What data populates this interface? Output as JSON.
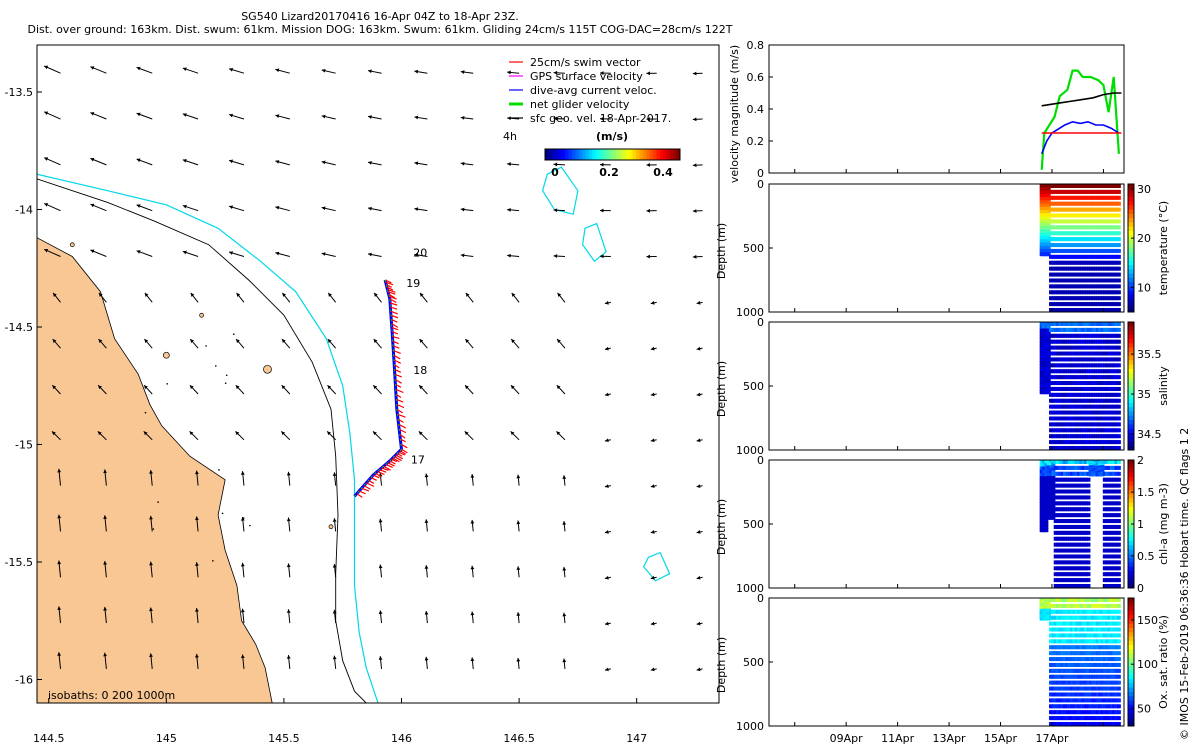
{
  "header": {
    "line1": "SG540 Lizard20170416 16-Apr 04Z to 18-Apr 23Z.",
    "line2": "Dist. over ground: 163km. Dist. swum: 61km. Mission DOG: 163km. Swum: 61km. Gliding 24cm/s 115T COG-DAC=28cm/s 122T"
  },
  "side_note": "© IMOS 15-Feb-2019 06:36:36 Hobart time. QC flags 1  2",
  "colors": {
    "land": "#F9C794",
    "iso200": "#00D8E8",
    "iso1000": "#000000",
    "swim": "#FF0000",
    "gps": "#FF00FF",
    "dac": "#0000FF",
    "net": "#00DD00",
    "geo": "#000000"
  },
  "chart_data": [
    {
      "id": "map",
      "type": "scatter",
      "subtype": "map-quiver",
      "xlim": [
        144.45,
        147.35
      ],
      "ylim": [
        -16.1,
        -13.3
      ],
      "xticks": [
        "144.5",
        "145",
        "145.5",
        "146",
        "146.5",
        "147"
      ],
      "xtick_values": [
        144.5,
        145,
        145.5,
        146,
        146.5,
        147
      ],
      "yticks": [
        "-13.5",
        "-14",
        "-14.5",
        "-15",
        "-15.5",
        "-16"
      ],
      "ytick_values": [
        -13.5,
        -14,
        -14.5,
        -15,
        -15.5,
        -16
      ],
      "legend": {
        "placement": "top-right",
        "entries": [
          "25cm/s swim vector",
          "GPS surface velocity",
          "dive-avg current veloc.",
          "net glider velocity",
          "sfc geo. vel. 18-Apr-2017."
        ]
      },
      "colorbar": {
        "label": "(m/s)",
        "ticks": [
          "0",
          "0.2",
          "0.4"
        ],
        "tick_values": [
          0,
          0.2,
          0.4
        ],
        "range": [
          0,
          0.5
        ]
      },
      "label_4h": "4h",
      "isobath_note": "isobaths: 0   200  1000m",
      "day_labels": [
        {
          "text": "20",
          "lon": 146.05,
          "lat": -14.2
        },
        {
          "text": "19",
          "lon": 146.02,
          "lat": -14.33
        },
        {
          "text": "18",
          "lon": 146.05,
          "lat": -14.7
        },
        {
          "text": "17",
          "lon": 146.04,
          "lat": -15.08
        }
      ],
      "track": [
        [
          145.93,
          -14.3
        ],
        [
          145.95,
          -14.38
        ],
        [
          145.96,
          -14.52
        ],
        [
          145.97,
          -14.68
        ],
        [
          145.98,
          -14.85
        ],
        [
          146.0,
          -15.02
        ],
        [
          145.95,
          -15.07
        ],
        [
          145.88,
          -15.13
        ],
        [
          145.8,
          -15.22
        ]
      ],
      "coast": [
        [
          144.45,
          -14.12
        ],
        [
          144.6,
          -14.2
        ],
        [
          144.72,
          -14.35
        ],
        [
          144.78,
          -14.55
        ],
        [
          144.88,
          -14.7
        ],
        [
          144.93,
          -14.83
        ],
        [
          144.98,
          -14.92
        ],
        [
          145.1,
          -15.05
        ],
        [
          145.25,
          -15.15
        ],
        [
          145.22,
          -15.3
        ],
        [
          145.25,
          -15.45
        ],
        [
          145.3,
          -15.6
        ],
        [
          145.32,
          -15.75
        ],
        [
          145.38,
          -15.85
        ],
        [
          145.42,
          -15.95
        ],
        [
          145.45,
          -16.1
        ]
      ],
      "iso200": [
        [
          144.45,
          -13.85
        ],
        [
          144.75,
          -13.92
        ],
        [
          145.0,
          -13.98
        ],
        [
          145.22,
          -14.08
        ],
        [
          145.4,
          -14.22
        ],
        [
          145.55,
          -14.35
        ],
        [
          145.68,
          -14.55
        ],
        [
          145.75,
          -14.75
        ],
        [
          145.78,
          -14.95
        ],
        [
          145.8,
          -15.15
        ],
        [
          145.8,
          -15.4
        ],
        [
          145.8,
          -15.6
        ],
        [
          145.82,
          -15.8
        ],
        [
          145.85,
          -15.95
        ],
        [
          145.9,
          -16.1
        ]
      ],
      "iso1000": [
        [
          144.45,
          -13.87
        ],
        [
          144.75,
          -13.97
        ],
        [
          144.95,
          -14.05
        ],
        [
          145.18,
          -14.15
        ],
        [
          145.35,
          -14.3
        ],
        [
          145.5,
          -14.45
        ],
        [
          145.62,
          -14.65
        ],
        [
          145.7,
          -14.85
        ],
        [
          145.72,
          -15.05
        ],
        [
          145.73,
          -15.3
        ],
        [
          145.72,
          -15.55
        ],
        [
          145.72,
          -15.75
        ],
        [
          145.75,
          -15.92
        ],
        [
          145.8,
          -16.05
        ],
        [
          145.85,
          -16.1
        ]
      ],
      "islands_200": [
        [
          [
            146.62,
            -13.85
          ],
          [
            146.68,
            -13.82
          ],
          [
            146.75,
            -13.92
          ],
          [
            146.73,
            -14.02
          ],
          [
            146.65,
            -14.0
          ],
          [
            146.6,
            -13.92
          ]
        ],
        [
          [
            146.78,
            -14.08
          ],
          [
            146.83,
            -14.06
          ],
          [
            146.87,
            -14.18
          ],
          [
            146.82,
            -14.22
          ],
          [
            146.77,
            -14.15
          ]
        ],
        [
          [
            147.05,
            -15.48
          ],
          [
            147.1,
            -15.46
          ],
          [
            147.14,
            -15.55
          ],
          [
            147.08,
            -15.58
          ],
          [
            147.03,
            -15.52
          ]
        ]
      ]
    },
    {
      "id": "velocity",
      "type": "line",
      "ylabel": "velocity magnitude (m/s)",
      "ylim": [
        0,
        0.8
      ],
      "yticks": [
        "0",
        "0.2",
        "0.4",
        "0.6",
        "0.8"
      ],
      "ytick_values": [
        0,
        0.2,
        0.4,
        0.6,
        0.8
      ],
      "x_range_days": [
        6.0,
        19.8
      ],
      "series": [
        {
          "key": "net",
          "x": [
            16.6,
            16.7,
            16.9,
            17.1,
            17.3,
            17.6,
            17.8,
            18.0,
            18.2,
            18.5,
            18.8,
            19.0,
            19.2,
            19.4,
            19.6
          ],
          "values": [
            0.02,
            0.25,
            0.3,
            0.35,
            0.48,
            0.52,
            0.64,
            0.64,
            0.6,
            0.6,
            0.58,
            0.55,
            0.38,
            0.6,
            0.12
          ]
        },
        {
          "key": "dac",
          "x": [
            16.6,
            16.8,
            17.0,
            17.2,
            17.5,
            17.8,
            18.1,
            18.4,
            18.7,
            19.0,
            19.3,
            19.6
          ],
          "values": [
            0.12,
            0.2,
            0.25,
            0.27,
            0.3,
            0.32,
            0.31,
            0.32,
            0.3,
            0.3,
            0.28,
            0.25
          ]
        },
        {
          "key": "swim",
          "x": [
            16.6,
            19.7
          ],
          "values": [
            0.25,
            0.25
          ]
        },
        {
          "key": "geo",
          "x": [
            16.6,
            17.0,
            17.4,
            17.8,
            18.2,
            18.6,
            19.0,
            19.4,
            19.7
          ],
          "values": [
            0.42,
            0.43,
            0.44,
            0.45,
            0.46,
            0.47,
            0.49,
            0.5,
            0.5
          ]
        }
      ]
    },
    {
      "id": "temperature",
      "type": "heatmap",
      "ylabel": "Depth (m)",
      "cbar_label": "temperature (°C)",
      "ylim": [
        1000,
        0
      ],
      "yticks": [
        "0",
        "500",
        "1000"
      ],
      "ytick_values": [
        0,
        500,
        1000
      ],
      "cbar_range": [
        5,
        31
      ],
      "cbar_ticks": [
        "10",
        "20",
        "30"
      ],
      "cbar_tick_values": [
        10,
        20,
        30
      ],
      "profile_x": [
        16.6,
        19.6
      ],
      "scheme": "temperature"
    },
    {
      "id": "salinity",
      "type": "heatmap",
      "ylabel": "Depth (m)",
      "cbar_label": "salinity",
      "ylim": [
        1000,
        0
      ],
      "yticks": [
        "0",
        "500",
        "1000"
      ],
      "ytick_values": [
        0,
        500,
        1000
      ],
      "cbar_range": [
        34.3,
        35.9
      ],
      "cbar_ticks": [
        "34.5",
        "35",
        "35.5"
      ],
      "cbar_tick_values": [
        34.5,
        35,
        35.5
      ],
      "profile_x": [
        16.6,
        19.6
      ],
      "scheme": "salinity"
    },
    {
      "id": "chla",
      "type": "heatmap",
      "ylabel": "Depth (m)",
      "cbar_label": "chl-a (mg m-3)",
      "ylim": [
        1000,
        0
      ],
      "yticks": [
        "0",
        "500",
        "1000"
      ],
      "ytick_values": [
        0,
        500,
        1000
      ],
      "cbar_range": [
        0,
        2
      ],
      "cbar_ticks": [
        "0",
        "0.5",
        "1",
        "1.5",
        "2"
      ],
      "cbar_tick_values": [
        0,
        0.5,
        1,
        1.5,
        2
      ],
      "profile_x": [
        16.6,
        19.6
      ],
      "scheme": "chla"
    },
    {
      "id": "oxygen",
      "type": "heatmap",
      "ylabel": "Depth (m)",
      "cbar_label": "Ox. sat. ratio (%)",
      "ylim": [
        1000,
        0
      ],
      "yticks": [
        "0",
        "500",
        "1000"
      ],
      "ytick_values": [
        0,
        500,
        1000
      ],
      "cbar_range": [
        30,
        175
      ],
      "cbar_ticks": [
        "50",
        "100",
        "150"
      ],
      "cbar_tick_values": [
        50,
        100,
        150
      ],
      "profile_x": [
        16.6,
        19.6
      ],
      "scheme": "oxygen",
      "xticks": [
        "09Apr",
        "11Apr",
        "13Apr",
        "15Apr",
        "17Apr"
      ],
      "xtick_values": [
        9,
        11,
        13,
        15,
        17
      ]
    }
  ]
}
